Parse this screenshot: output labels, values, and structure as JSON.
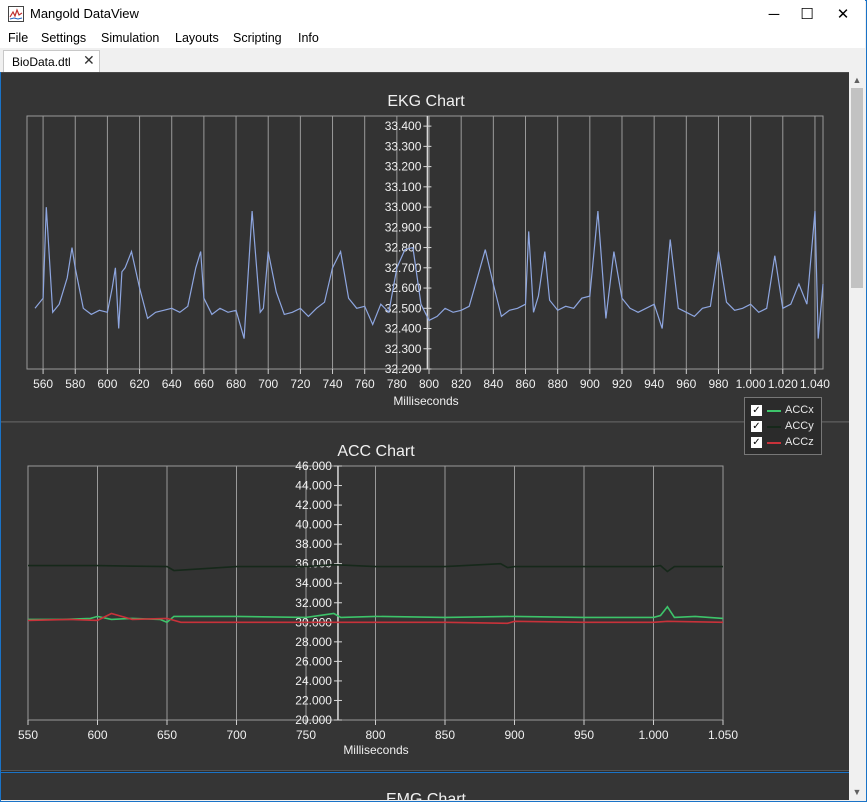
{
  "window": {
    "title": "Mangold DataView",
    "controls": {
      "minimize": "─",
      "maximize": "☐",
      "close": "✕"
    }
  },
  "menu": [
    "File",
    "Settings",
    "Simulation",
    "Layouts",
    "Scripting",
    "Info"
  ],
  "tab": {
    "label": "BioData.dtl",
    "close": "✕"
  },
  "colors": {
    "ekg": "#8ea6e0",
    "accx": "#3dc46a",
    "accy": "#16281a",
    "accz": "#c8323a",
    "grid": "#9a9a9a"
  },
  "ekg_chart": {
    "title": "EKG Chart",
    "xlabel": "Milliseconds",
    "x_ticks": [
      "560",
      "580",
      "600",
      "620",
      "640",
      "660",
      "680",
      "700",
      "720",
      "740",
      "760",
      "780",
      "800",
      "820",
      "840",
      "860",
      "880",
      "900",
      "920",
      "940",
      "960",
      "980",
      "1.000",
      "1.020",
      "1.040"
    ],
    "y_ticks": [
      "33.400",
      "33.300",
      "33.200",
      "33.100",
      "33.000",
      "32.900",
      "32.800",
      "32.700",
      "32.600",
      "32.500",
      "32.400",
      "32.300",
      "32.200"
    ]
  },
  "acc_chart": {
    "title": "ACC Chart",
    "xlabel": "Milliseconds",
    "x_ticks": [
      "550",
      "600",
      "650",
      "700",
      "750",
      "800",
      "850",
      "900",
      "950",
      "1.000",
      "1.050"
    ],
    "y_ticks": [
      "46.000",
      "44.000",
      "42.000",
      "40.000",
      "38.000",
      "36.000",
      "34.000",
      "32.000",
      "30.000",
      "28.000",
      "26.000",
      "24.000",
      "22.000",
      "20.000"
    ],
    "legend": [
      {
        "label": "ACCx",
        "checked": "✓"
      },
      {
        "label": "ACCy",
        "checked": "✓"
      },
      {
        "label": "ACCz",
        "checked": "✓"
      }
    ]
  },
  "emg_chart": {
    "title": "EMG Chart"
  },
  "chart_data": [
    {
      "type": "line",
      "title": "EKG Chart",
      "xlabel": "Milliseconds",
      "ylabel": "",
      "xlim": [
        550,
        1045
      ],
      "ylim": [
        32200,
        33450
      ],
      "grid": true,
      "series": [
        {
          "x": [
            555,
            560,
            562,
            566,
            570,
            575,
            578,
            580,
            585,
            590,
            595,
            600,
            603,
            605,
            607,
            609,
            611,
            615,
            620,
            625,
            630,
            635,
            640,
            645,
            650,
            655,
            658,
            660,
            665,
            670,
            675,
            680,
            685,
            690,
            695,
            697,
            700,
            705,
            710,
            715,
            720,
            725,
            730,
            735,
            740,
            745,
            750,
            755,
            760,
            765,
            770,
            775,
            780,
            785,
            790,
            795,
            800,
            805,
            810,
            815,
            820,
            825,
            830,
            835,
            840,
            845,
            850,
            855,
            860,
            862,
            865,
            868,
            872,
            875,
            880,
            885,
            890,
            895,
            900,
            905,
            910,
            915,
            920,
            925,
            930,
            935,
            940,
            945,
            950,
            955,
            960,
            965,
            970,
            975,
            980,
            985,
            990,
            995,
            1000,
            1005,
            1010,
            1015,
            1020,
            1025,
            1030,
            1035,
            1040,
            1042,
            1045
          ],
          "y": [
            32500,
            32550,
            33000,
            32480,
            32520,
            32650,
            32800,
            32700,
            32500,
            32470,
            32490,
            32480,
            32600,
            32700,
            32400,
            32680,
            32700,
            32780,
            32600,
            32450,
            32480,
            32490,
            32500,
            32480,
            32510,
            32700,
            32780,
            32550,
            32470,
            32500,
            32480,
            32490,
            32350,
            32980,
            32480,
            32500,
            32780,
            32580,
            32470,
            32480,
            32500,
            32460,
            32500,
            32530,
            32700,
            32780,
            32550,
            32500,
            32510,
            32420,
            32520,
            32480,
            32700,
            32790,
            32800,
            32520,
            32440,
            32460,
            32500,
            32480,
            32490,
            32510,
            32650,
            32790,
            32620,
            32460,
            32490,
            32500,
            32520,
            32880,
            32480,
            32560,
            32780,
            32540,
            32490,
            32510,
            32500,
            32550,
            32560,
            32980,
            32450,
            32780,
            32550,
            32500,
            32480,
            32500,
            32520,
            32400,
            32840,
            32500,
            32480,
            32460,
            32500,
            32510,
            32780,
            32530,
            32490,
            32500,
            32520,
            32480,
            32500,
            32760,
            32500,
            32520,
            32620,
            32520,
            32980,
            32350,
            32620
          ]
        }
      ]
    },
    {
      "type": "line",
      "title": "ACC Chart",
      "xlabel": "Milliseconds",
      "ylabel": "",
      "xlim": [
        550,
        1050
      ],
      "ylim": [
        20000,
        46000
      ],
      "grid": true,
      "legend": "top-right",
      "series": [
        {
          "name": "ACCx",
          "x": [
            550,
            575,
            595,
            600,
            610,
            625,
            645,
            650,
            655,
            670,
            700,
            750,
            770,
            775,
            800,
            850,
            900,
            950,
            1000,
            1005,
            1010,
            1015,
            1030,
            1050
          ],
          "y": [
            30300,
            30300,
            30400,
            30600,
            30300,
            30400,
            30300,
            30000,
            30600,
            30600,
            30600,
            30500,
            30900,
            30500,
            30600,
            30500,
            30600,
            30500,
            30500,
            30700,
            31600,
            30500,
            30600,
            30400
          ]
        },
        {
          "name": "ACCy",
          "x": [
            550,
            600,
            650,
            655,
            700,
            750,
            770,
            800,
            850,
            890,
            895,
            900,
            950,
            1000,
            1005,
            1010,
            1015,
            1050
          ],
          "y": [
            35800,
            35800,
            35700,
            35300,
            35700,
            35700,
            35900,
            35700,
            35700,
            36000,
            35600,
            35700,
            35700,
            35700,
            35800,
            35200,
            35700,
            35700
          ]
        },
        {
          "name": "ACCz",
          "x": [
            550,
            580,
            600,
            610,
            625,
            650,
            660,
            700,
            750,
            800,
            850,
            895,
            900,
            950,
            1000,
            1010,
            1050
          ],
          "y": [
            30200,
            30300,
            30200,
            30900,
            30300,
            30400,
            30000,
            30000,
            30000,
            30000,
            30000,
            29900,
            30100,
            30000,
            30000,
            30100,
            30000
          ]
        }
      ]
    }
  ]
}
